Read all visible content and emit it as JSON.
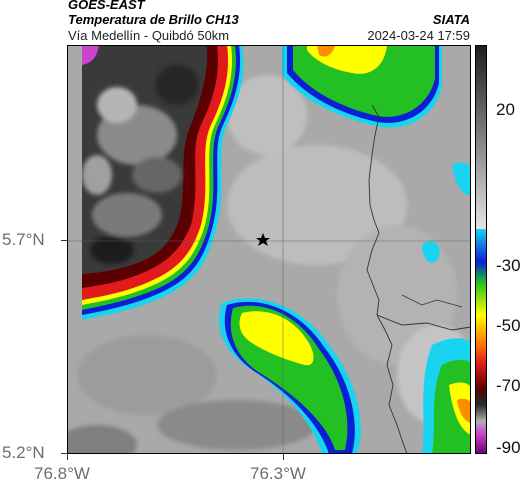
{
  "header": {
    "satellite": "GOES-EAST",
    "product": "Temperatura de Brillo CH13",
    "location": "Vía Medellín - Quibdó 50km",
    "organization": "SIATA",
    "datetime": "2024-03-24 17:59"
  },
  "axes": {
    "latitude_labels": [
      "5.7°N",
      "5.2°N"
    ],
    "longitude_labels": [
      "76.8°W",
      "76.3°W"
    ]
  },
  "colorbar": {
    "tick_labels": [
      "20",
      "-30",
      "-50",
      "-70",
      "-90"
    ],
    "colors": [
      "#222222",
      "#d8d8d8",
      "#1e5fd6",
      "#2fcc2f",
      "#f2f200",
      "#e62020",
      "#5a0000",
      "#b0b0b0",
      "#cc44cc"
    ]
  },
  "map": {
    "marker": "star-icon",
    "colors": {
      "background": "#a9a9a9",
      "warm_mid": "#8c8c8c",
      "cold_dark": "#262626",
      "cold_mid": "#606060",
      "red": "#e11b1b",
      "dark_red": "#5a0000",
      "orange": "#ff8c00",
      "yellow": "#ffff00",
      "green": "#22c022",
      "cyan": "#18d4f0",
      "blue": "#0b1fd6",
      "magenta": "#cc44cc"
    }
  }
}
